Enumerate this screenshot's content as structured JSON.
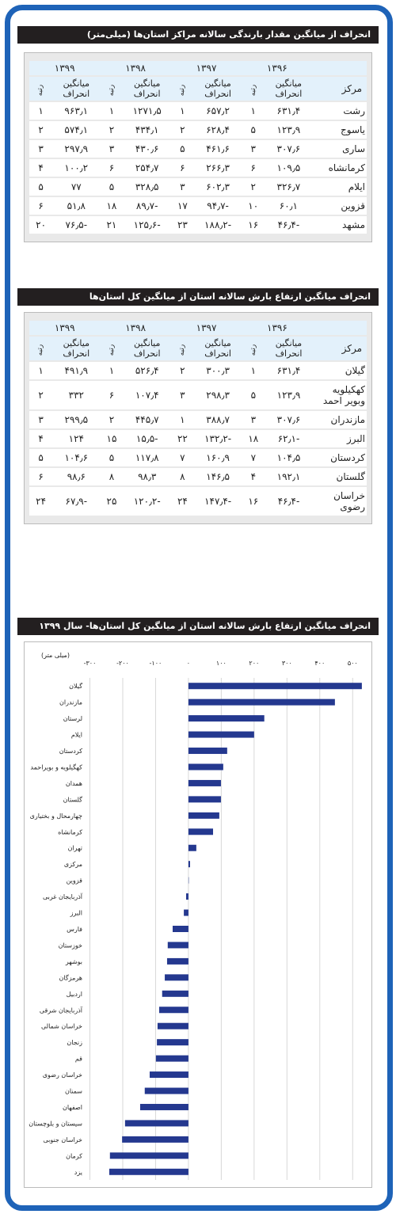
{
  "tables": [
    {
      "title": "انحراف از میانگین مقدار بارندگی سالانه مراکز استان‌ها (میلی‌متر)",
      "header": {
        "corner": "مرکز",
        "years": [
          "۱۳۹۶",
          "۱۳۹۷",
          "۱۳۹۸",
          "۱۳۹۹"
        ],
        "sub": [
          "میانگین انحراف",
          "رتبه"
        ]
      },
      "rows": [
        [
          "رشت",
          "۶۳۱٫۴",
          "۱",
          "۶۵۷٫۲",
          "۱",
          "۱۲۷۱٫۵",
          "۱",
          "۹۶۳٫۱",
          "۱"
        ],
        [
          "یاسوج",
          "۱۲۳٫۹",
          "۵",
          "۶۲۸٫۴",
          "۲",
          "۴۳۴٫۱",
          "۲",
          "۵۷۴٫۱",
          "۲"
        ],
        [
          "ساری",
          "۳۰۷٫۶",
          "۳",
          "۴۶۱٫۶",
          "۵",
          "۴۳۰٫۶",
          "۳",
          "۲۹۷٫۹",
          "۳"
        ],
        [
          "کرمانشاه",
          "۱۰۹٫۵",
          "۶",
          "۲۶۶٫۳",
          "۶",
          "۲۵۴٫۷",
          "۶",
          "۱۰۰٫۲",
          "۴"
        ],
        [
          "ایلام",
          "۳۲۶٫۷",
          "۲",
          "۶۰۲٫۳",
          "۳",
          "۳۲۸٫۵",
          "۵",
          "۷۷",
          "۵"
        ],
        [
          "قزوین",
          "۶۰٫۱",
          "۱۰",
          "-۹۴٫۷",
          "۱۷",
          "-۸۹٫۷",
          "۱۸",
          "۵۱٫۸",
          "۶"
        ],
        [
          "مشهد",
          "-۴۶٫۴",
          "۱۶",
          "-۱۸۸٫۲",
          "۲۳",
          "-۱۲۵٫۶",
          "۲۱",
          "-۷۶٫۵",
          "۲۰"
        ]
      ]
    },
    {
      "title": "انحراف میانگین ارتفاع بارش سالانه استان از میانگین کل استان‌ها",
      "header": {
        "corner": "مرکز",
        "years": [
          "۱۳۹۶",
          "۱۳۹۷",
          "۱۳۹۸",
          "۱۳۹۹"
        ],
        "sub": [
          "میانگین انحراف",
          "رتبه"
        ]
      },
      "rows": [
        [
          "گیلان",
          "۶۳۱٫۴",
          "۱",
          "۳۰۰٫۳",
          "۲",
          "۵۲۶٫۴",
          "۱",
          "۴۹۱٫۹",
          "۱"
        ],
        [
          "کهکیلویه وبویر احمد",
          "۱۲۳٫۹",
          "۵",
          "۲۹۸٫۳",
          "۳",
          "۱۰۷٫۴",
          "۶",
          "۳۳۲",
          "۲"
        ],
        [
          "مازندران",
          "۳۰۷٫۶",
          "۳",
          "۳۸۸٫۷",
          "۱",
          "۴۴۵٫۷",
          "۲",
          "۲۹۹٫۵",
          "۳"
        ],
        [
          "البرز",
          "-۶۲٫۱",
          "۱۸",
          "-۱۳۲٫۲",
          "۲۲",
          "-۱۵٫۵",
          "۱۵",
          "۱۲۴",
          "۴"
        ],
        [
          "کردستان",
          "۱۰۴٫۵",
          "۷",
          "۱۶۰٫۹",
          "۷",
          "۱۱۷٫۸",
          "۵",
          "۱۰۴٫۶",
          "۵"
        ],
        [
          "گلستان",
          "۱۹۲٫۱",
          "۴",
          "۱۴۶٫۵",
          "۸",
          "۹۸٫۳",
          "۸",
          "۹۸٫۶",
          "۶"
        ],
        [
          "خراسان رضوی",
          "-۴۶٫۴",
          "۱۶",
          "-۱۴۷٫۴",
          "۲۴",
          "-۱۲۰٫۲",
          "۲۵",
          "-۶۷٫۹",
          "۲۴"
        ]
      ]
    }
  ],
  "chart_data": {
    "type": "barh",
    "title": "انحراف میانگین ارتفاع بارش سالانه استان از میانگین کل استان‌ها- سال ۱۳۹۹",
    "xlabel": "(میلی متر)",
    "categories": [
      "گیلان",
      "مازندران",
      "لرستان",
      "ایلام",
      "کردستان",
      "کهگیلویه و بویراحمد",
      "همدان",
      "گلستان",
      "چهارمحال و بختیاری",
      "کرمانشاه",
      "تهران",
      "مرکزی",
      "قزوین",
      "آذربایجان غربی",
      "البرز",
      "فارس",
      "خوزستان",
      "بوشهر",
      "هرمزگان",
      "اردبیل",
      "آذربایجان شرقی",
      "خراسان شمالی",
      "زنجان",
      "قم",
      "خراسان رضوی",
      "سمنان",
      "اصفهان",
      "سیستان و بلوچستان",
      "خراسان جنوبی",
      "کرمان",
      "یزد"
    ],
    "values": [
      528,
      446,
      231,
      200,
      118,
      106,
      99,
      99,
      94,
      75,
      24,
      5,
      1,
      -7,
      -14,
      -48,
      -63,
      -65,
      -72,
      -80,
      -89,
      -94,
      -96,
      -99,
      -118,
      -133,
      -147,
      -193,
      -202,
      -239,
      -241
    ],
    "color": "#24388f",
    "xlim": [
      -300,
      550
    ],
    "xticks": [
      {
        "value": -300,
        "label": "-۳۰۰"
      },
      {
        "value": -200,
        "label": "-۲۰۰"
      },
      {
        "value": -100,
        "label": "-۱۰۰"
      },
      {
        "value": 0,
        "label": "۰"
      },
      {
        "value": 100,
        "label": "۱۰۰"
      },
      {
        "value": 200,
        "label": "۲۰۰"
      },
      {
        "value": 300,
        "label": "۳۰۰"
      },
      {
        "value": 400,
        "label": "۴۰۰"
      },
      {
        "value": 500,
        "label": "۵۰۰"
      }
    ],
    "grid": true
  }
}
